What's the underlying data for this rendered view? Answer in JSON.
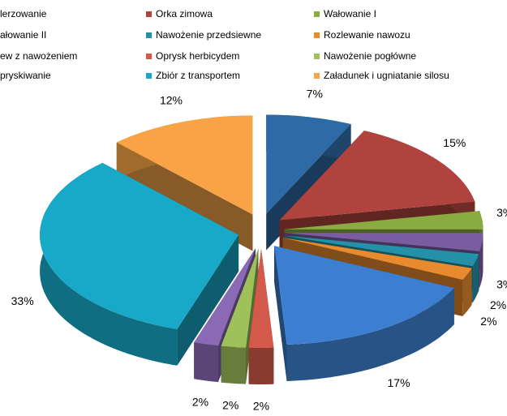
{
  "chart_data": {
    "type": "pie",
    "categories": [
      "lerzowanie",
      "Orka zimowa",
      "Wałowanie I",
      "ałowanie II",
      "Nawożenie przedsiewne",
      "Rozlewanie nawozu",
      "ew z nawożeniem",
      "Oprysk herbicydem",
      "Nawożenie pogłówne",
      "pryskiwanie",
      "Zbiór z transportem",
      "Załadunek i ugniatanie silosu"
    ],
    "values": [
      7,
      15,
      3,
      3,
      2,
      2,
      17,
      2,
      2,
      2,
      33,
      12
    ],
    "value_labels": [
      "7%",
      "15%",
      "3%",
      "3%",
      "2%",
      "2%",
      "17%",
      "2%",
      "2%",
      "2%",
      "33%",
      "12%"
    ],
    "colors": [
      "#2e6aa6",
      "#b0433d",
      "#8aab3f",
      "#7a5ca0",
      "#2591a8",
      "#e88a2e",
      "#3c7fd0",
      "#d35a4a",
      "#9ec15a",
      "#8a6ab5",
      "#18a9c8",
      "#f8a446"
    ],
    "legend": "top"
  }
}
